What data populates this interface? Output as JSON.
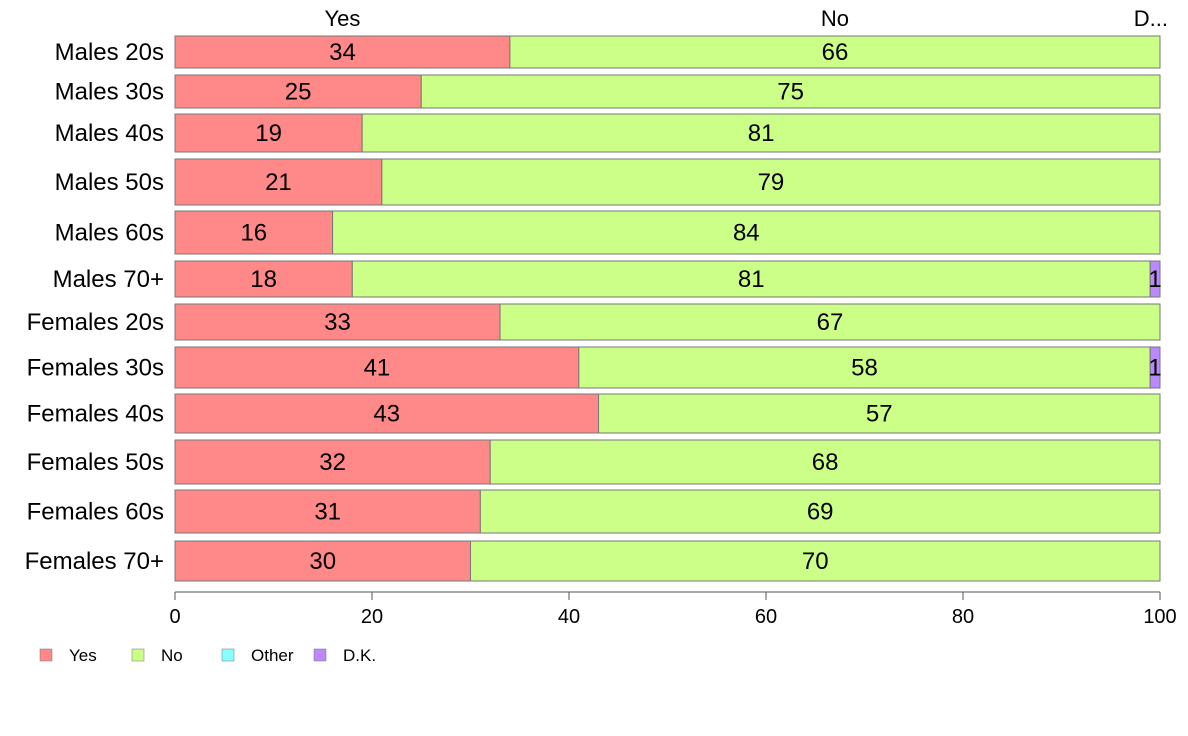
{
  "chart_data": {
    "type": "bar",
    "orientation": "horizontal",
    "stacked": true,
    "categories": [
      "Males 20s",
      "Males 30s",
      "Males 40s",
      "Males 50s",
      "Males 60s",
      "Males 70+",
      "Females 20s",
      "Females 30s",
      "Females 40s",
      "Females 50s",
      "Females 60s",
      "Females 70+"
    ],
    "series": [
      {
        "name": "Yes",
        "color": "#ff8888",
        "values": [
          34,
          25,
          19,
          21,
          16,
          18,
          33,
          41,
          43,
          32,
          31,
          30
        ],
        "labels": [
          "34",
          "25",
          "19",
          "21",
          "16",
          "18",
          "33",
          "41",
          "43",
          "32",
          "31",
          "30"
        ]
      },
      {
        "name": "No",
        "color": "#ccff88",
        "values": [
          66,
          75,
          81,
          79,
          84,
          81,
          67,
          58,
          57,
          68,
          69,
          70
        ],
        "labels": [
          "66",
          "75",
          "81",
          "79",
          "84",
          "81",
          "67",
          "58",
          "57",
          "68",
          "69",
          "70"
        ]
      },
      {
        "name": "Other",
        "color": "#88ffff",
        "values": [
          0,
          0,
          0,
          0,
          0,
          0,
          0,
          0,
          0,
          0,
          0,
          0
        ],
        "labels": [
          "",
          "",
          "",
          "",
          "",
          "",
          "",
          "",
          "",
          "",
          "",
          ""
        ]
      },
      {
        "name": "D.K.",
        "color": "#bb88ff",
        "values": [
          0,
          0,
          0,
          0,
          0,
          1,
          0,
          1,
          0,
          0,
          0,
          0
        ],
        "labels": [
          "",
          "",
          "",
          "",
          "",
          "1",
          "",
          "1",
          "",
          "",
          "",
          ""
        ]
      }
    ],
    "top_labels": [
      "Yes",
      "No",
      "D..."
    ],
    "xlim": [
      0,
      100
    ],
    "xticks": [
      0,
      20,
      40,
      60,
      80,
      100
    ],
    "xtick_labels": [
      "0",
      "20",
      "40",
      "60",
      "80",
      "100"
    ],
    "title": "",
    "xlabel": "",
    "ylabel": "",
    "grid": false,
    "legend": {
      "position": "bottom-left",
      "entries": [
        "Yes",
        "No",
        "Other",
        "D.K."
      ]
    }
  }
}
